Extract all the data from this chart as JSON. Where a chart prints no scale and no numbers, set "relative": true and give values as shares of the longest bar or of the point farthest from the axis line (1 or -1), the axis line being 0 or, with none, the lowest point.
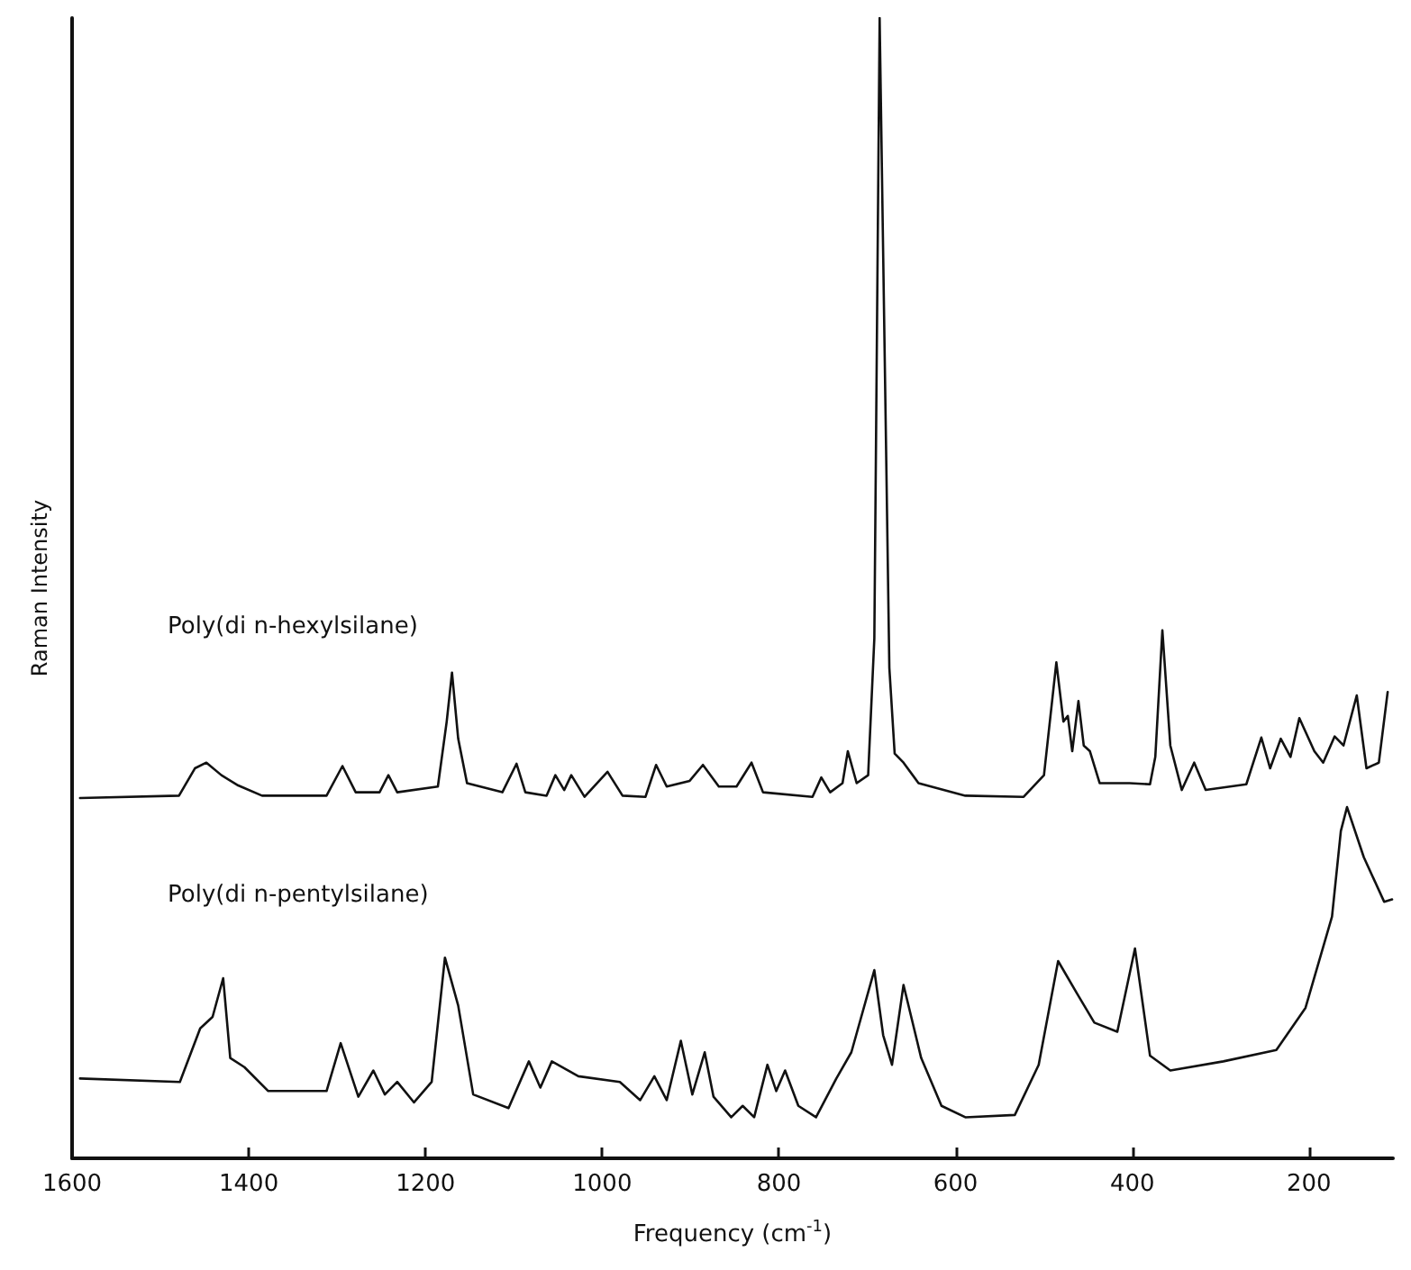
{
  "chart_data": {
    "type": "line",
    "relative": true,
    "xlabel": "Frequency (cm$^{-1}$)",
    "ylabel": "Raman Intensity",
    "xlim": [
      1600,
      105
    ],
    "xticks": [
      1600,
      1400,
      1200,
      1000,
      800,
      600,
      400,
      200
    ],
    "grid": false,
    "legend": false,
    "marker": "none",
    "line_style": "solid",
    "series": [
      {
        "name": "Poly(di n-hexylsilane)",
        "color": "#111111",
        "x": [
          1591,
          1479,
          1461,
          1448,
          1431,
          1412,
          1385,
          1312,
          1294,
          1279,
          1252,
          1242,
          1232,
          1186,
          1176,
          1170,
          1163,
          1153,
          1113,
          1097,
          1087,
          1063,
          1053,
          1043,
          1035,
          1020,
          994,
          977,
          951,
          939,
          927,
          901,
          886,
          868,
          848,
          831,
          818,
          762,
          752,
          742,
          728,
          722,
          712,
          699,
          692,
          686,
          675,
          669,
          659,
          642,
          589,
          523,
          500,
          486,
          478,
          473,
          468,
          461,
          455,
          448,
          437,
          403,
          380,
          374,
          366,
          357,
          344,
          330,
          317,
          271,
          254,
          244,
          232,
          221,
          211,
          194,
          184,
          171,
          161,
          146,
          135,
          121,
          111
        ],
        "values": [
          0.316,
          0.318,
          0.342,
          0.347,
          0.336,
          0.327,
          0.318,
          0.318,
          0.344,
          0.321,
          0.321,
          0.336,
          0.321,
          0.326,
          0.383,
          0.426,
          0.368,
          0.329,
          0.321,
          0.346,
          0.321,
          0.318,
          0.336,
          0.323,
          0.336,
          0.317,
          0.339,
          0.318,
          0.317,
          0.345,
          0.326,
          0.331,
          0.345,
          0.326,
          0.326,
          0.347,
          0.321,
          0.317,
          0.334,
          0.321,
          0.329,
          0.357,
          0.329,
          0.336,
          0.456,
          1.0,
          0.43,
          0.355,
          0.347,
          0.329,
          0.318,
          0.317,
          0.336,
          0.435,
          0.383,
          0.388,
          0.357,
          0.401,
          0.362,
          0.357,
          0.329,
          0.329,
          0.328,
          0.352,
          0.463,
          0.362,
          0.323,
          0.347,
          0.323,
          0.328,
          0.369,
          0.342,
          0.368,
          0.352,
          0.386,
          0.357,
          0.347,
          0.37,
          0.362,
          0.406,
          0.342,
          0.347,
          0.409
        ]
      },
      {
        "name": "Poly(di n-pentylsilane)",
        "color": "#111111",
        "x": [
          1591,
          1478,
          1455,
          1441,
          1429,
          1421,
          1405,
          1378,
          1312,
          1296,
          1276,
          1259,
          1246,
          1232,
          1213,
          1193,
          1178,
          1163,
          1146,
          1106,
          1083,
          1070,
          1057,
          1027,
          980,
          957,
          941,
          927,
          911,
          898,
          884,
          874,
          854,
          841,
          828,
          813,
          803,
          793,
          778,
          758,
          735,
          718,
          692,
          682,
          672,
          659,
          639,
          616,
          589,
          533,
          506,
          484,
          463,
          443,
          417,
          397,
          380,
          357,
          297,
          237,
          204,
          174,
          164,
          157,
          138,
          115,
          106
        ],
        "values": [
          0.07,
          0.067,
          0.114,
          0.124,
          0.158,
          0.088,
          0.08,
          0.059,
          0.059,
          0.101,
          0.054,
          0.077,
          0.056,
          0.067,
          0.049,
          0.067,
          0.176,
          0.134,
          0.056,
          0.044,
          0.085,
          0.062,
          0.085,
          0.072,
          0.067,
          0.051,
          0.072,
          0.051,
          0.103,
          0.056,
          0.093,
          0.054,
          0.036,
          0.046,
          0.036,
          0.082,
          0.059,
          0.077,
          0.046,
          0.036,
          0.07,
          0.093,
          0.165,
          0.108,
          0.082,
          0.152,
          0.088,
          0.046,
          0.036,
          0.038,
          0.082,
          0.173,
          0.145,
          0.119,
          0.111,
          0.184,
          0.09,
          0.077,
          0.085,
          0.095,
          0.132,
          0.212,
          0.287,
          0.308,
          0.264,
          0.225,
          0.227
        ]
      }
    ]
  }
}
